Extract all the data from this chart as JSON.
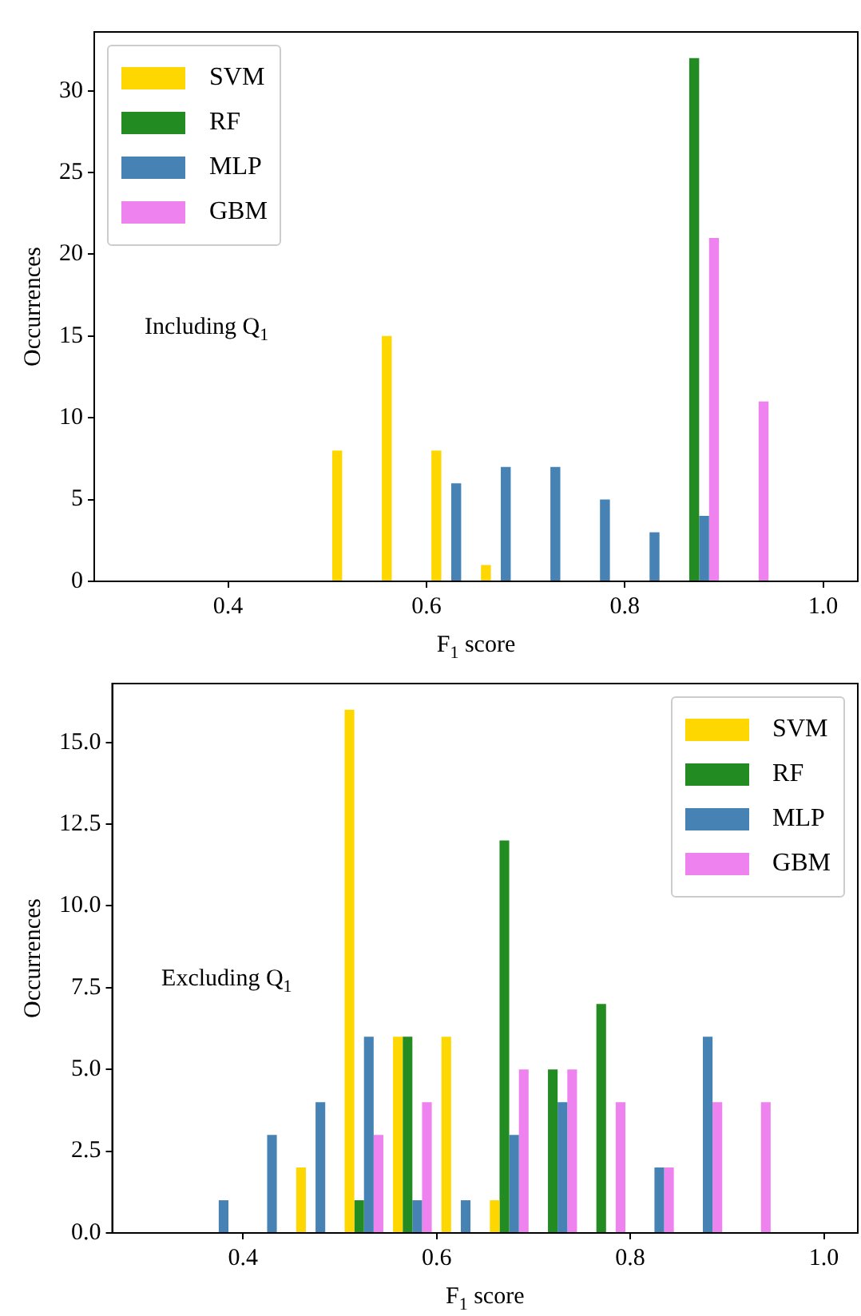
{
  "chart_data": [
    {
      "type": "histogram",
      "xlabel": "F$_{1}$ score",
      "ylabel": "Occurrences",
      "annotations": [
        "Including Q$_{1}$"
      ],
      "bins": [
        0.3,
        0.35,
        0.4,
        0.45,
        0.5,
        0.55,
        0.6,
        0.65,
        0.7,
        0.75,
        0.8,
        0.85,
        0.9,
        0.95,
        1.0
      ],
      "series": [
        {
          "name": "SVM",
          "color": "#ffd700",
          "values": [
            0,
            0,
            0,
            0,
            8,
            15,
            8,
            1,
            0,
            0,
            0,
            0,
            0,
            0
          ]
        },
        {
          "name": "RF",
          "color": "#228b22",
          "values": [
            0,
            0,
            0,
            0,
            0,
            0,
            0,
            0,
            0,
            0,
            0,
            32,
            0,
            0
          ]
        },
        {
          "name": "MLP",
          "color": "#4682b4",
          "values": [
            0,
            0,
            0,
            0,
            0,
            0,
            6,
            7,
            7,
            5,
            3,
            4,
            0,
            0
          ]
        },
        {
          "name": "GBM",
          "color": "#ee82ee",
          "values": [
            0,
            0,
            0,
            0,
            0,
            0,
            0,
            0,
            0,
            0,
            0,
            21,
            11,
            0
          ]
        }
      ],
      "xlim": [
        0.265,
        1.035
      ],
      "xticks": [
        0.4,
        0.6,
        0.8,
        {
          "value": 1.0,
          "label": "1.0"
        }
      ],
      "ylim": [
        0,
        33.6
      ],
      "yticks": [
        0,
        5,
        10,
        15,
        20,
        25,
        30
      ],
      "grid": false,
      "legend": "top left"
    },
    {
      "type": "histogram",
      "xlabel": "F$_{1}$ score",
      "ylabel": "Occurrences",
      "annotations": [
        "Excluding Q$_{1}$"
      ],
      "bins": [
        0.3,
        0.35,
        0.4,
        0.45,
        0.5,
        0.55,
        0.6,
        0.65,
        0.7,
        0.75,
        0.8,
        0.85,
        0.9,
        0.95,
        1.0
      ],
      "series": [
        {
          "name": "SVM",
          "color": "#ffd700",
          "values": [
            0,
            0,
            0,
            2,
            16,
            6,
            6,
            1,
            0,
            0,
            0,
            0,
            0,
            0
          ]
        },
        {
          "name": "RF",
          "color": "#228b22",
          "values": [
            0,
            0,
            0,
            0,
            1,
            6,
            0,
            12,
            5,
            7,
            0,
            0,
            0,
            0
          ]
        },
        {
          "name": "MLP",
          "color": "#4682b4",
          "values": [
            0,
            1,
            3,
            4,
            6,
            1,
            1,
            3,
            4,
            0,
            2,
            6,
            0,
            0
          ]
        },
        {
          "name": "GBM",
          "color": "#ee82ee",
          "values": [
            0,
            0,
            0,
            0,
            3,
            4,
            0,
            5,
            5,
            4,
            2,
            4,
            4,
            0
          ]
        }
      ],
      "xlim": [
        0.265,
        1.035
      ],
      "xticks": [
        0.4,
        0.6,
        0.8,
        {
          "value": 1.0,
          "label": "1.0"
        }
      ],
      "ylim": [
        0,
        16.8
      ],
      "yticks": [
        {
          "value": 0,
          "label": "0.0"
        },
        {
          "value": 2.5,
          "label": "2.5"
        },
        {
          "value": 5,
          "label": "5.0"
        },
        {
          "value": 7.5,
          "label": "7.5"
        },
        {
          "value": 10,
          "label": "10.0"
        },
        {
          "value": 12.5,
          "label": "12.5"
        },
        {
          "value": 15,
          "label": "15.0"
        }
      ],
      "grid": false,
      "legend": "top right"
    }
  ]
}
